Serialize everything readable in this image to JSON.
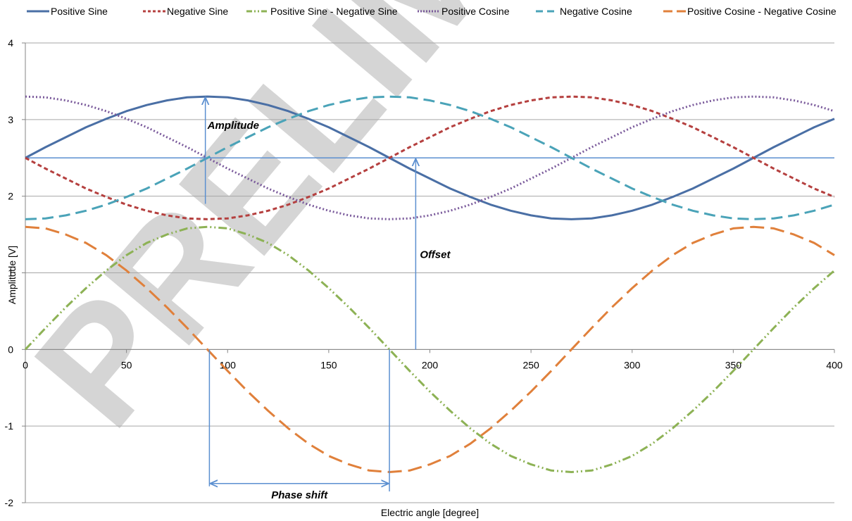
{
  "watermark": "PRELIMINARY",
  "chart_data": {
    "type": "line",
    "title": "",
    "xlabel": "Electric angle [degree]",
    "ylabel": "Amplitude [V]",
    "xlim": [
      0,
      400
    ],
    "ylim": [
      -2,
      4
    ],
    "x_ticks": [
      "0",
      "50",
      "100",
      "150",
      "200",
      "250",
      "300",
      "350",
      "400"
    ],
    "y_ticks": [
      "-2",
      "-1",
      "0",
      "1",
      "2",
      "3",
      "4"
    ],
    "grid": "horizontal",
    "legend_position": "top",
    "x": [
      0,
      10,
      20,
      30,
      40,
      50,
      60,
      70,
      80,
      90,
      100,
      110,
      120,
      130,
      140,
      150,
      160,
      170,
      180,
      190,
      200,
      210,
      220,
      230,
      240,
      250,
      260,
      270,
      280,
      290,
      300,
      310,
      320,
      330,
      340,
      350,
      360,
      370,
      380,
      390,
      400
    ],
    "series": [
      {
        "name": "Positive Sine",
        "color": "#4a6fa5",
        "dash": "solid",
        "values": [
          2.5,
          2.64,
          2.77,
          2.9,
          3.01,
          3.11,
          3.19,
          3.25,
          3.29,
          3.3,
          3.29,
          3.25,
          3.19,
          3.11,
          3.01,
          2.9,
          2.77,
          2.64,
          2.5,
          2.36,
          2.23,
          2.1,
          1.99,
          1.89,
          1.81,
          1.75,
          1.71,
          1.7,
          1.71,
          1.75,
          1.81,
          1.89,
          1.99,
          2.1,
          2.23,
          2.36,
          2.5,
          2.64,
          2.77,
          2.9,
          3.01
        ]
      },
      {
        "name": "Negative Sine",
        "color": "#b5403f",
        "dash": "short-dash",
        "values": [
          2.5,
          2.36,
          2.23,
          2.1,
          1.99,
          1.89,
          1.81,
          1.75,
          1.71,
          1.7,
          1.71,
          1.75,
          1.81,
          1.89,
          1.99,
          2.1,
          2.23,
          2.36,
          2.5,
          2.64,
          2.77,
          2.9,
          3.01,
          3.11,
          3.19,
          3.25,
          3.29,
          3.3,
          3.29,
          3.25,
          3.19,
          3.11,
          3.01,
          2.9,
          2.77,
          2.64,
          2.5,
          2.36,
          2.23,
          2.1,
          1.99
        ]
      },
      {
        "name": "Positive Sine - Negative Sine",
        "color": "#8db255",
        "dash": "dash-dot-dot",
        "values": [
          0,
          0.28,
          0.55,
          0.8,
          1.03,
          1.23,
          1.39,
          1.5,
          1.58,
          1.6,
          1.58,
          1.5,
          1.39,
          1.23,
          1.03,
          0.8,
          0.55,
          0.28,
          0,
          -0.28,
          -0.55,
          -0.8,
          -1.03,
          -1.23,
          -1.39,
          -1.5,
          -1.58,
          -1.6,
          -1.58,
          -1.5,
          -1.39,
          -1.23,
          -1.03,
          -0.8,
          -0.55,
          -0.28,
          0,
          0.28,
          0.55,
          0.8,
          1.03
        ]
      },
      {
        "name": "Positive Cosine",
        "color": "#7a5a9b",
        "dash": "dotted",
        "values": [
          3.3,
          3.29,
          3.25,
          3.19,
          3.11,
          3.01,
          2.9,
          2.77,
          2.64,
          2.5,
          2.36,
          2.23,
          2.1,
          1.99,
          1.89,
          1.81,
          1.75,
          1.71,
          1.7,
          1.71,
          1.75,
          1.81,
          1.89,
          1.99,
          2.1,
          2.23,
          2.36,
          2.5,
          2.64,
          2.77,
          2.9,
          3.01,
          3.11,
          3.19,
          3.25,
          3.29,
          3.3,
          3.29,
          3.25,
          3.19,
          3.11
        ]
      },
      {
        "name": "Negative Cosine",
        "color": "#4aa3b8",
        "dash": "dash",
        "values": [
          1.7,
          1.71,
          1.75,
          1.81,
          1.89,
          1.99,
          2.1,
          2.23,
          2.36,
          2.5,
          2.64,
          2.77,
          2.9,
          3.01,
          3.11,
          3.19,
          3.25,
          3.29,
          3.3,
          3.29,
          3.25,
          3.19,
          3.11,
          3.01,
          2.9,
          2.77,
          2.64,
          2.5,
          2.36,
          2.23,
          2.1,
          1.99,
          1.89,
          1.81,
          1.75,
          1.71,
          1.7,
          1.71,
          1.75,
          1.81,
          1.89
        ]
      },
      {
        "name": "Positive Cosine - Negative Cosine",
        "color": "#e0803b",
        "dash": "long-dash",
        "values": [
          1.6,
          1.58,
          1.5,
          1.39,
          1.23,
          1.03,
          0.8,
          0.55,
          0.28,
          0,
          -0.28,
          -0.55,
          -0.8,
          -1.03,
          -1.23,
          -1.39,
          -1.5,
          -1.58,
          -1.6,
          -1.58,
          -1.5,
          -1.39,
          -1.23,
          -1.03,
          -0.8,
          -0.55,
          -0.28,
          0,
          0.28,
          0.55,
          0.8,
          1.03,
          1.23,
          1.39,
          1.5,
          1.58,
          1.6,
          1.58,
          1.5,
          1.39,
          1.23
        ]
      }
    ],
    "offset_line": {
      "y": 2.5,
      "color": "#5b8fd0"
    },
    "annotations": [
      {
        "label": "Amplitude",
        "type": "vertical-arrow",
        "x": 89,
        "from_y": 1.9,
        "to_y": 3.3
      },
      {
        "label": "Offset",
        "type": "vertical-arrow",
        "x": 193,
        "from_y": 0,
        "to_y": 2.5
      },
      {
        "label": "Phase shift",
        "type": "horizontal-arrow",
        "y": -1.75,
        "from_x": 91,
        "to_x": 180
      }
    ],
    "annotation_color": "#5b8fd0"
  }
}
